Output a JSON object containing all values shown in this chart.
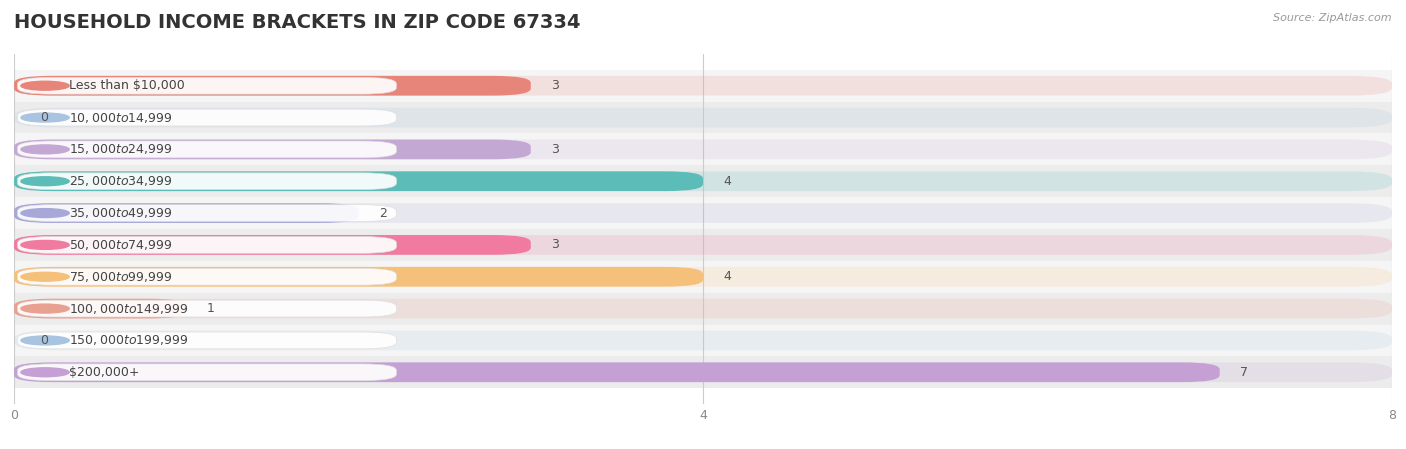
{
  "title": "HOUSEHOLD INCOME BRACKETS IN ZIP CODE 67334",
  "source": "Source: ZipAtlas.com",
  "categories": [
    "Less than $10,000",
    "$10,000 to $14,999",
    "$15,000 to $24,999",
    "$25,000 to $34,999",
    "$35,000 to $49,999",
    "$50,000 to $74,999",
    "$75,000 to $99,999",
    "$100,000 to $149,999",
    "$150,000 to $199,999",
    "$200,000+"
  ],
  "values": [
    3,
    0,
    3,
    4,
    2,
    3,
    4,
    1,
    0,
    7
  ],
  "bar_colors": [
    "#e8857a",
    "#a8c4e0",
    "#c4a8d4",
    "#5bbcb8",
    "#a8a8d8",
    "#f07aa0",
    "#f5c07a",
    "#e8a090",
    "#a8c4e0",
    "#c4a0d4"
  ],
  "xlim": [
    0,
    8
  ],
  "xticks": [
    0,
    4,
    8
  ],
  "bar_height": 0.62,
  "bg_color": "#ffffff",
  "row_colors": [
    "#f5f5f5",
    "#ececec"
  ],
  "title_fontsize": 14,
  "label_fontsize": 9,
  "value_fontsize": 9,
  "source_fontsize": 8
}
